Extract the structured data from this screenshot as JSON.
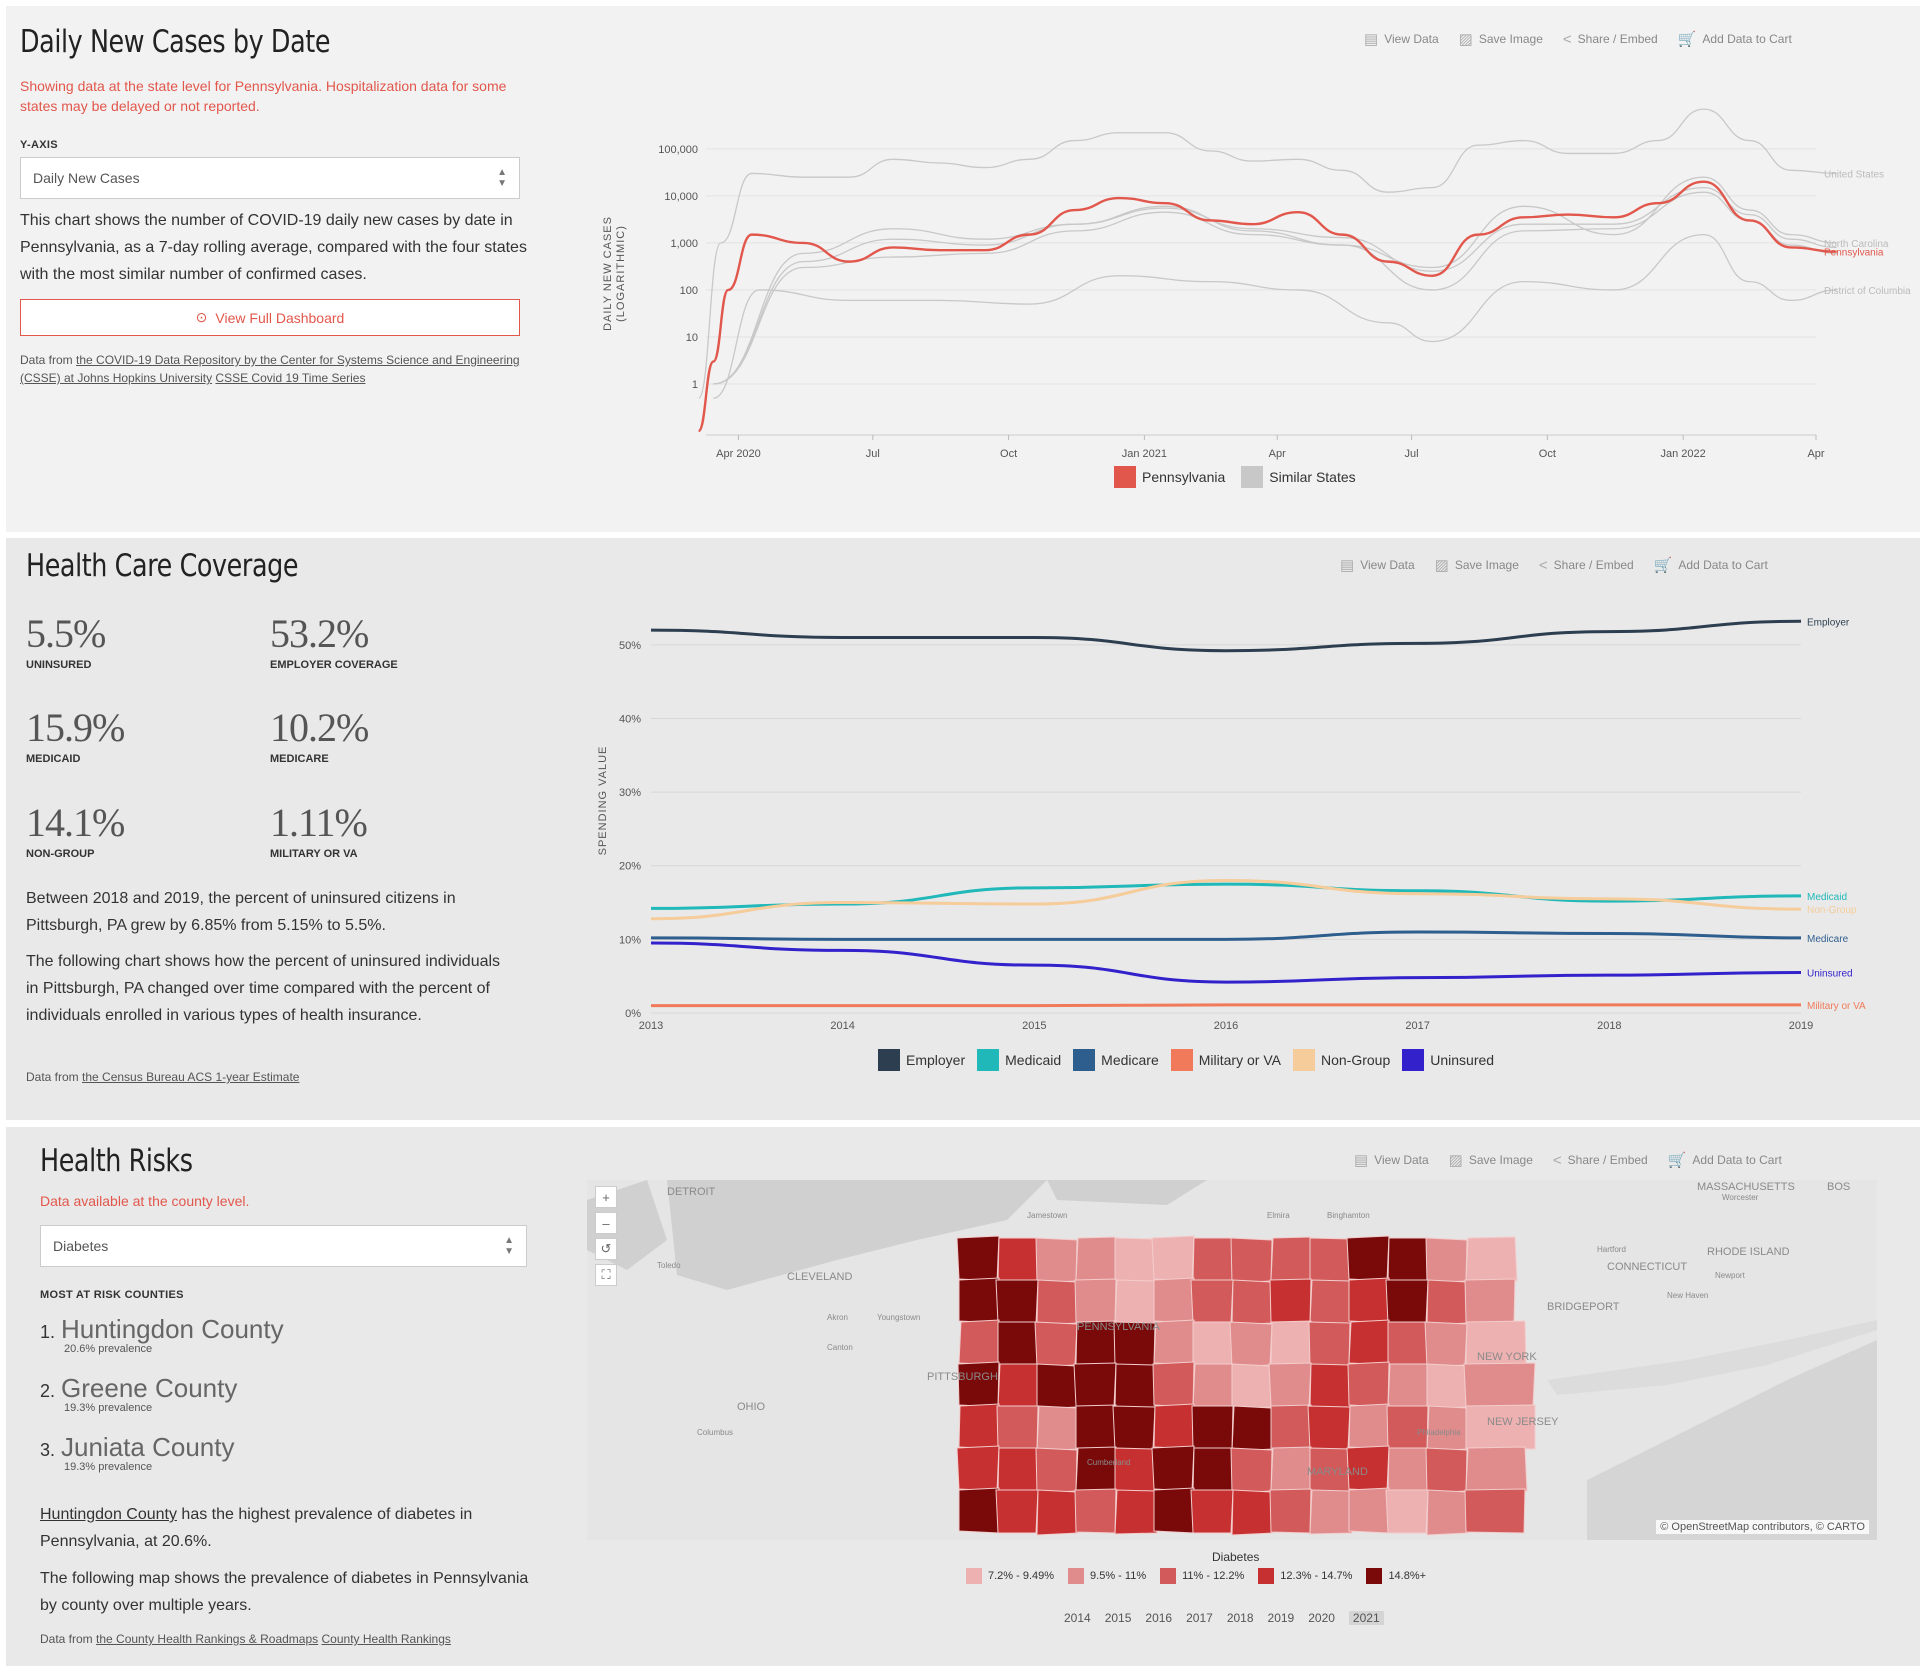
{
  "toolbar": {
    "view": "View Data",
    "save": "Save Image",
    "share": "Share / Embed",
    "cart": "Add Data to Cart"
  },
  "cases": {
    "title": "Daily New Cases by Date",
    "notice": "Showing data at the state level for Pennsylvania. Hospitalization data for some states may be delayed or not reported.",
    "yaxis_label": "Y-AXIS",
    "yaxis_value": "Daily New Cases",
    "description": "This chart shows the number of COVID-19 daily new cases by date in Pennsylvania, as a 7-day rolling average, compared with the four states with the most similar number of confirmed cases.",
    "button": "View Full Dashboard",
    "source_prefix": "Data from",
    "source_link1": "the COVID-19 Data Repository by the Center for Systems Science and Engineering (CSSE) at Johns Hopkins University",
    "source_link2": "CSSE Covid 19 Time Series"
  },
  "coverage": {
    "title": "Health Care Coverage",
    "stats": [
      {
        "value": "5.5%",
        "label": "UNINSURED"
      },
      {
        "value": "53.2%",
        "label": "EMPLOYER COVERAGE"
      },
      {
        "value": "15.9%",
        "label": "MEDICAID"
      },
      {
        "value": "10.2%",
        "label": "MEDICARE"
      },
      {
        "value": "14.1%",
        "label": "NON-GROUP"
      },
      {
        "value": "1.11%",
        "label": "MILITARY OR VA"
      }
    ],
    "para1": "Between 2018 and 2019, the percent of uninsured citizens in Pittsburgh, PA grew by 6.85% from 5.15% to 5.5%.",
    "para2": "The following chart shows how the percent of uninsured individuals in Pittsburgh, PA changed over time compared with the percent of individuals enrolled in various types of health insurance.",
    "source_prefix": "Data from",
    "source_link": "the Census Bureau ACS 1-year Estimate"
  },
  "risks": {
    "title": "Health Risks",
    "notice": "Data available at the county level.",
    "select_value": "Diabetes",
    "list_label": "MOST AT RISK COUNTIES",
    "counties": [
      {
        "num": "1.",
        "name": "Huntingdon County",
        "prev": "20.6% prevalence"
      },
      {
        "num": "2.",
        "name": "Greene County",
        "prev": "19.3% prevalence"
      },
      {
        "num": "3.",
        "name": "Juniata County",
        "prev": "19.3% prevalence"
      }
    ],
    "para1_link": "Huntingdon County",
    "para1_rest": " has the highest prevalence of diabetes in Pennsylvania, at 20.6%.",
    "para2": "The following map shows the prevalence of diabetes in Pennsylvania by county over multiple years.",
    "source_prefix": "Data from",
    "source_link1": "the County Health Rankings & Roadmaps",
    "source_link2": "County Health Rankings",
    "map_attribution": "© OpenStreetMap contributors, © CARTO",
    "legend_title": "Diabetes",
    "legend": [
      {
        "label": "7.2% - 9.49%",
        "color": "#eeb1b1"
      },
      {
        "label": "9.5% - 11%",
        "color": "#e08c8c"
      },
      {
        "label": "11% - 12.2%",
        "color": "#d25a5a"
      },
      {
        "label": "12.3% - 14.7%",
        "color": "#c73030"
      },
      {
        "label": "14.8%+",
        "color": "#7a0a0a"
      }
    ],
    "years": [
      "2014",
      "2015",
      "2016",
      "2017",
      "2018",
      "2019",
      "2020",
      "2021"
    ],
    "selected_year": "2021",
    "map_labels": [
      "DETROIT",
      "CLEVELAND",
      "OHIO",
      "PITTSBURGH",
      "PENNSYLVANIA",
      "NEW YORK",
      "NEW JERSEY",
      "CONNECTICUT",
      "RHODE ISLAND",
      "MASSACHUSETTS",
      "Toledo",
      "Akron",
      "Youngstown",
      "Canton",
      "Columbus",
      "Binghamton",
      "Elmira",
      "Hartford",
      "New Haven",
      "BRIDGEPORT",
      "Worcester",
      "Newport",
      "Jamestown",
      "Cumberland",
      "Philadelphia",
      "MARYLAND",
      "BOS"
    ]
  },
  "chart_data": [
    {
      "type": "line",
      "ylabel": "DAILY NEW CASES (LOGARITHMIC)",
      "y_scale": "log",
      "ylim": [
        0.1,
        500000
      ],
      "y_ticks": [
        "100,000",
        "10,000",
        "1,000",
        "100",
        "10",
        "1"
      ],
      "x_ticks": [
        "Apr 2020",
        "Jul",
        "Oct",
        "Jan 2021",
        "Apr",
        "Jul",
        "Oct",
        "Jan 2022",
        "Apr"
      ],
      "xlim": [
        "2020-03",
        "2022-04"
      ],
      "legend": [
        "Pennsylvania",
        "Similar States"
      ],
      "series": [
        {
          "name": "Pennsylvania",
          "color": "#e2574c",
          "x": [
            "2020-03-05",
            "2020-03-15",
            "2020-03-25",
            "2020-04-10",
            "2020-05",
            "2020-06",
            "2020-07",
            "2020-08",
            "2020-09",
            "2020-10",
            "2020-11",
            "2020-12",
            "2021-01",
            "2021-02",
            "2021-03",
            "2021-04",
            "2021-05",
            "2021-06",
            "2021-07",
            "2021-08",
            "2021-09",
            "2021-10",
            "2021-11",
            "2021-12",
            "2022-01",
            "2022-02",
            "2022-03",
            "2022-04"
          ],
          "values": [
            0.1,
            3,
            100,
            1500,
            1000,
            400,
            800,
            700,
            700,
            1500,
            5000,
            9000,
            7000,
            3000,
            2500,
            4500,
            1500,
            400,
            200,
            1500,
            3500,
            4000,
            3500,
            7000,
            20000,
            3000,
            800,
            650
          ]
        },
        {
          "name": "United States",
          "color": "#c8c8c8",
          "x": [
            "2020-03-05",
            "2020-03-20",
            "2020-04-10",
            "2020-05",
            "2020-06",
            "2020-07",
            "2020-08",
            "2020-09",
            "2020-10",
            "2020-11",
            "2020-12",
            "2021-01",
            "2021-02",
            "2021-03",
            "2021-04",
            "2021-05",
            "2021-06",
            "2021-07",
            "2021-08",
            "2021-09",
            "2021-10",
            "2021-11",
            "2021-12",
            "2022-01",
            "2022-02",
            "2022-03",
            "2022-04"
          ],
          "values": [
            0.5,
            1000,
            30000,
            25000,
            25000,
            60000,
            50000,
            40000,
            60000,
            150000,
            220000,
            220000,
            90000,
            55000,
            60000,
            35000,
            12000,
            15000,
            120000,
            150000,
            80000,
            80000,
            150000,
            700000,
            150000,
            35000,
            30000
          ]
        },
        {
          "name": "North Carolina",
          "color": "#c8c8c8",
          "x": [
            "2020-03-15",
            "2020-05",
            "2020-07",
            "2020-09",
            "2020-11",
            "2021-01",
            "2021-03",
            "2021-05",
            "2021-07",
            "2021-09",
            "2021-11",
            "2022-01",
            "2022-02",
            "2022-03",
            "2022-04"
          ],
          "values": [
            1,
            600,
            2000,
            1200,
            2500,
            6000,
            1800,
            900,
            300,
            6000,
            1500,
            25000,
            5000,
            1500,
            1000
          ]
        },
        {
          "name": "District of Columbia",
          "color": "#c8c8c8",
          "x": [
            "2020-03-15",
            "2020-04",
            "2020-06",
            "2020-08",
            "2020-10",
            "2020-12",
            "2021-02",
            "2021-04",
            "2021-06",
            "2021-07",
            "2021-09",
            "2021-11",
            "2022-01",
            "2022-02",
            "2022-03",
            "2022-04"
          ],
          "values": [
            0.5,
            100,
            60,
            60,
            50,
            200,
            150,
            100,
            20,
            8,
            150,
            100,
            1500,
            150,
            60,
            100
          ]
        },
        {
          "name": "Similar State",
          "color": "#c8c8c8",
          "x": [
            "2020-03-15",
            "2020-05",
            "2020-07",
            "2020-09",
            "2020-11",
            "2021-01",
            "2021-03",
            "2021-05",
            "2021-07",
            "2021-09",
            "2021-11",
            "2022-01",
            "2022-02",
            "2022-03",
            "2022-04"
          ],
          "values": [
            1,
            400,
            1200,
            900,
            2500,
            5500,
            2000,
            1300,
            250,
            2500,
            2500,
            15000,
            4000,
            1200,
            800
          ]
        },
        {
          "name": "Similar State",
          "color": "#c8c8c8",
          "x": [
            "2020-03-15",
            "2020-05",
            "2020-07",
            "2020-09",
            "2020-11",
            "2021-01",
            "2021-03",
            "2021-05",
            "2021-07",
            "2021-09",
            "2021-11",
            "2022-01",
            "2022-02",
            "2022-03",
            "2022-04"
          ],
          "values": [
            1,
            300,
            500,
            600,
            1800,
            4500,
            1500,
            900,
            100,
            1800,
            2000,
            12000,
            3000,
            900,
            600
          ]
        }
      ]
    },
    {
      "type": "line",
      "ylabel": "SPENDING VALUE",
      "ylim": [
        0,
        55
      ],
      "y_ticks": [
        "50%",
        "40%",
        "30%",
        "20%",
        "10%",
        "0%"
      ],
      "x": [
        "2013",
        "2014",
        "2015",
        "2016",
        "2017",
        "2018",
        "2019"
      ],
      "series": [
        {
          "name": "Employer",
          "color": "#2c3e50",
          "values": [
            52,
            51,
            51,
            49.2,
            50.2,
            51.8,
            53.2
          ]
        },
        {
          "name": "Medicaid",
          "color": "#20b8b8",
          "values": [
            14.2,
            14.8,
            17,
            17.5,
            16.6,
            15.2,
            15.9
          ]
        },
        {
          "name": "Medicare",
          "color": "#2e5e8e",
          "values": [
            10.2,
            10,
            10,
            10,
            11,
            10.8,
            10.2
          ]
        },
        {
          "name": "Military or VA",
          "color": "#f07a5a",
          "values": [
            1,
            1,
            1,
            1.1,
            1.1,
            1.1,
            1.11
          ]
        },
        {
          "name": "Non-Group",
          "color": "#f5cc9a",
          "values": [
            12.8,
            15,
            14.8,
            18,
            16.2,
            15.5,
            14.1
          ]
        },
        {
          "name": "Uninsured",
          "color": "#3322cc",
          "values": [
            9.5,
            8.5,
            6.5,
            4.2,
            4.8,
            5.15,
            5.5
          ]
        }
      ]
    }
  ]
}
